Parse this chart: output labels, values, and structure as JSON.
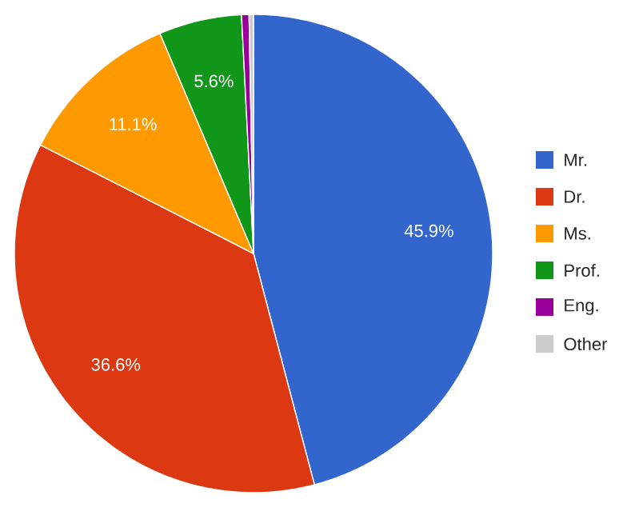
{
  "chart_data": {
    "type": "pie",
    "categories": [
      "Mr.",
      "Dr.",
      "Ms.",
      "Prof.",
      "Eng.",
      "Other"
    ],
    "values": [
      45.9,
      36.6,
      11.1,
      5.6,
      0.5,
      0.3
    ],
    "colors": [
      "#3366cc",
      "#dc3912",
      "#ff9900",
      "#109618",
      "#990099",
      "#cccccc"
    ],
    "value_labels": [
      "45.9%",
      "36.6%",
      "11.1%",
      "5.6%",
      null,
      null
    ],
    "legend": "right"
  }
}
